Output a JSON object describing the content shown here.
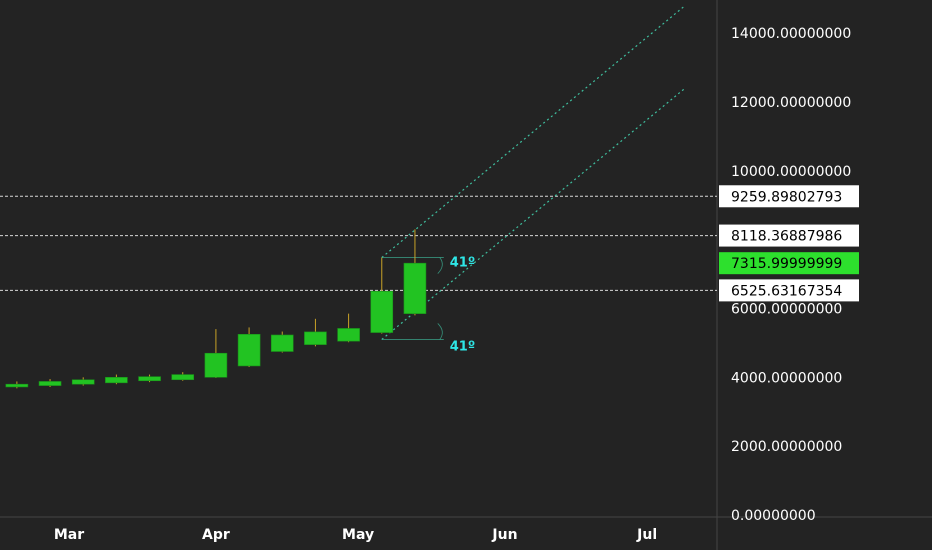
{
  "chart_data": {
    "type": "candlestick",
    "colors": {
      "background": "#232323",
      "candle_up": "#22c322",
      "wick": "#c9a227",
      "level_line": "#d8d8d8",
      "channel": "#3fbf9f",
      "axis_text": "#ffffff",
      "current_price_bg": "#2de02d",
      "angle_text": "#2ee6e6"
    },
    "y_axis": {
      "range": [
        0,
        15000
      ],
      "ticks": [
        {
          "value": 0,
          "label": "0.00000000"
        },
        {
          "value": 2000,
          "label": "2000.00000000"
        },
        {
          "value": 4000,
          "label": "4000.00000000"
        },
        {
          "value": 6000,
          "label": "6000.00000000"
        },
        {
          "value": 10000,
          "label": "10000.00000000"
        },
        {
          "value": 12000,
          "label": "12000.00000000"
        },
        {
          "value": 14000,
          "label": "14000.00000000"
        }
      ]
    },
    "x_axis": {
      "labels": [
        {
          "date": "2019-03-01",
          "label": "Mar"
        },
        {
          "date": "2019-04-01",
          "label": "Apr"
        },
        {
          "date": "2019-05-01",
          "label": "May"
        },
        {
          "date": "2019-06-01",
          "label": "Jun"
        },
        {
          "date": "2019-07-01",
          "label": "Jul"
        }
      ]
    },
    "candles": [
      {
        "date": "2019-02-11",
        "open": 3620,
        "high": 3820,
        "low": 3580,
        "close": 3780
      },
      {
        "date": "2019-02-18",
        "open": 3720,
        "high": 3880,
        "low": 3680,
        "close": 3800
      },
      {
        "date": "2019-02-25",
        "open": 3760,
        "high": 3950,
        "low": 3720,
        "close": 3880
      },
      {
        "date": "2019-03-04",
        "open": 3800,
        "high": 4000,
        "low": 3760,
        "close": 3930
      },
      {
        "date": "2019-03-11",
        "open": 3840,
        "high": 4080,
        "low": 3800,
        "close": 4000
      },
      {
        "date": "2019-03-18",
        "open": 3900,
        "high": 4080,
        "low": 3860,
        "close": 4020
      },
      {
        "date": "2019-03-25",
        "open": 3930,
        "high": 4150,
        "low": 3900,
        "close": 4080
      },
      {
        "date": "2019-04-01",
        "open": 4000,
        "high": 5400,
        "low": 3980,
        "close": 4700
      },
      {
        "date": "2019-04-08",
        "open": 4330,
        "high": 5450,
        "low": 4300,
        "close": 5250
      },
      {
        "date": "2019-04-15",
        "open": 4750,
        "high": 5330,
        "low": 4720,
        "close": 5230
      },
      {
        "date": "2019-04-22",
        "open": 4950,
        "high": 5700,
        "low": 4900,
        "close": 5320
      },
      {
        "date": "2019-04-29",
        "open": 5050,
        "high": 5850,
        "low": 5020,
        "close": 5420
      },
      {
        "date": "2019-05-06",
        "open": 5300,
        "high": 7480,
        "low": 5270,
        "close": 6500
      },
      {
        "date": "2019-05-13",
        "open": 5850,
        "high": 8300,
        "low": 5800,
        "close": 7316
      }
    ],
    "levels": [
      {
        "value": 9259.89802793,
        "label": "9259.89802793"
      },
      {
        "value": 8118.36887986,
        "label": "8118.36887986"
      },
      {
        "value": 6525.63167354,
        "label": "6525.63167354"
      }
    ],
    "current_price": {
      "value": 7315.99999999,
      "label": "7315.99999999"
    },
    "channel_lines": [
      {
        "start": {
          "date": "2019-05-06",
          "value": 7480
        },
        "end": {
          "date": "2019-07-09",
          "value": 14800
        }
      },
      {
        "start": {
          "date": "2019-05-06",
          "value": 5100
        },
        "end": {
          "date": "2019-07-09",
          "value": 12400
        }
      }
    ],
    "angles": [
      {
        "label": "41º",
        "vertex": {
          "date": "2019-05-06",
          "value": 7480
        }
      },
      {
        "label": "41º",
        "vertex": {
          "date": "2019-05-06",
          "value": 5100
        }
      }
    ],
    "grid": false
  }
}
